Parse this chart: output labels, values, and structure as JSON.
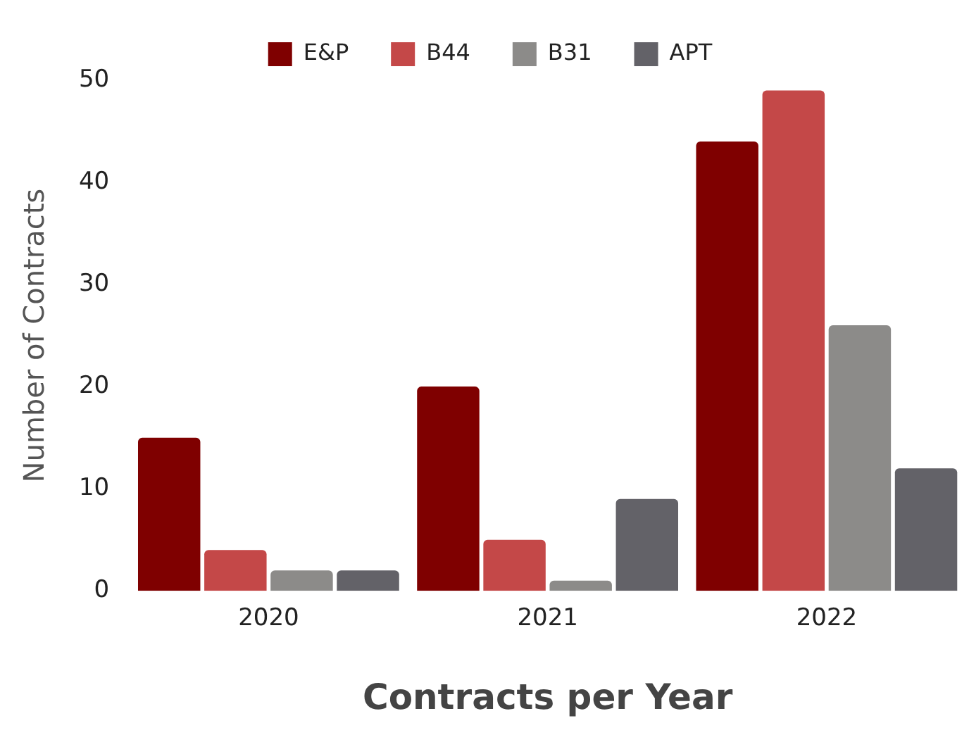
{
  "chart_data": {
    "type": "bar",
    "xlabel": "Contracts per Year",
    "ylabel": "Number of Contracts",
    "categories": [
      "2020",
      "2021",
      "2022"
    ],
    "series": [
      {
        "name": "E&P",
        "color": "#7f0000",
        "values": [
          15,
          20,
          44
        ]
      },
      {
        "name": "B44",
        "color": "#c44848",
        "values": [
          4,
          5,
          49
        ]
      },
      {
        "name": "B31",
        "color": "#8c8b89",
        "values": [
          2,
          1,
          26
        ]
      },
      {
        "name": "APT",
        "color": "#636268",
        "values": [
          2,
          9,
          12
        ]
      }
    ],
    "ylim": [
      0,
      50
    ],
    "yticks": [
      0,
      10,
      20,
      30,
      40,
      50
    ],
    "grid": false,
    "legend": "top"
  }
}
